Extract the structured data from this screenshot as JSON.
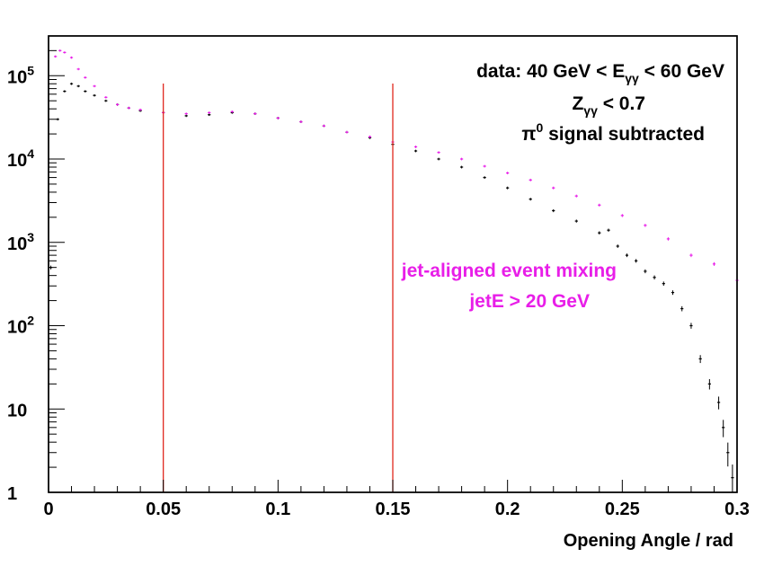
{
  "chart_data": {
    "type": "scatter",
    "xlabel": "Opening Angle / rad",
    "ylabel": "",
    "xlim": [
      0,
      0.3
    ],
    "ylim": [
      1,
      300000
    ],
    "yscale": "log",
    "x_ticks": [
      "0",
      "0.05",
      "0.1",
      "0.15",
      "0.2",
      "0.25",
      "0.3"
    ],
    "y_ticks": [
      {
        "mantissa": "10",
        "exp": "5",
        "value": 100000
      },
      {
        "mantissa": "10",
        "exp": "4",
        "value": 10000
      },
      {
        "mantissa": "10",
        "exp": "3",
        "value": 1000
      },
      {
        "mantissa": "10",
        "exp": "2",
        "value": 100
      },
      {
        "mantissa": "10",
        "exp": "",
        "value": 10
      },
      {
        "mantissa": "1",
        "exp": "",
        "value": 1
      }
    ],
    "annotations": {
      "line1_pre": "data: 40 GeV < E",
      "line1_sub": "γγ",
      "line1_post": " < 60 GeV",
      "line2_pre": "Z",
      "line2_sub": "γγ",
      "line2_post": " < 0.7",
      "line3_pre": "π",
      "line3_sup": "0",
      "line3_post": " signal subtracted",
      "mix_line1": "jet-aligned event mixing",
      "mix_line2": "jetE > 20 GeV"
    },
    "vertical_lines": [
      0.05,
      0.15
    ],
    "colors": {
      "data": "#000000",
      "mixing": "#e81ee8",
      "lines": "#e0281e",
      "frame": "#000000"
    },
    "series": [
      {
        "color": "#000000",
        "x": [
          0.001,
          0.004,
          0.007,
          0.01,
          0.013,
          0.016,
          0.02,
          0.025,
          0.03,
          0.035,
          0.04,
          0.05,
          0.06,
          0.07,
          0.08,
          0.09,
          0.1,
          0.11,
          0.12,
          0.13,
          0.14,
          0.15,
          0.16,
          0.17,
          0.18,
          0.19,
          0.2,
          0.21,
          0.22,
          0.23,
          0.24,
          0.244,
          0.248,
          0.252,
          0.256,
          0.26,
          0.264,
          0.268,
          0.272,
          0.276,
          0.28,
          0.284,
          0.288,
          0.292,
          0.294,
          0.296,
          0.298
        ],
        "y": [
          500,
          30000,
          65000,
          80000,
          75000,
          65000,
          58000,
          50000,
          45000,
          41000,
          38000,
          36000,
          33000,
          34000,
          36000,
          35000,
          31000,
          28000,
          25000,
          21000,
          18000,
          15000,
          12500,
          10000,
          8000,
          6000,
          4500,
          3300,
          2400,
          1800,
          1300,
          1400,
          900,
          700,
          600,
          450,
          380,
          320,
          250,
          160,
          100,
          40,
          20,
          12,
          6,
          3,
          1.5
        ]
      },
      {
        "color": "#e81ee8",
        "x": [
          0.003,
          0.005,
          0.007,
          0.01,
          0.013,
          0.016,
          0.02,
          0.025,
          0.03,
          0.035,
          0.04,
          0.05,
          0.06,
          0.07,
          0.08,
          0.09,
          0.1,
          0.11,
          0.12,
          0.13,
          0.14,
          0.15,
          0.16,
          0.17,
          0.18,
          0.19,
          0.2,
          0.21,
          0.22,
          0.23,
          0.24,
          0.25,
          0.26,
          0.27,
          0.28,
          0.29,
          0.3
        ],
        "y": [
          170000,
          200000,
          190000,
          165000,
          120000,
          95000,
          75000,
          55000,
          45000,
          41000,
          39000,
          36000,
          35000,
          36000,
          37000,
          35000,
          31000,
          28000,
          25000,
          21000,
          18500,
          16000,
          14000,
          12000,
          10000,
          8200,
          6800,
          5600,
          4500,
          3600,
          2800,
          2100,
          1600,
          1100,
          700,
          550,
          350
        ]
      }
    ]
  }
}
